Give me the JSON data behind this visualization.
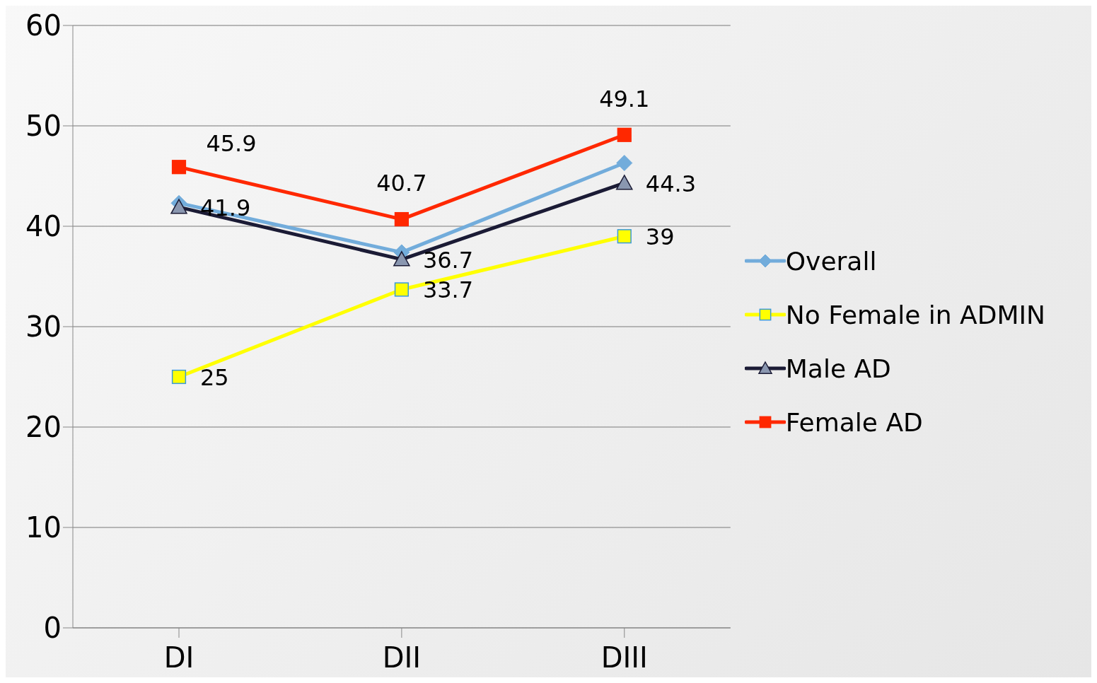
{
  "chart_data": {
    "type": "line",
    "categories": [
      "DI",
      "DII",
      "DIII"
    ],
    "series": [
      {
        "name": "Overall",
        "color": "#72acdb",
        "marker": "diamond",
        "values": [
          42.3,
          37.4,
          46.3
        ]
      },
      {
        "name": "No Female in ADMIN",
        "color": "#ffff00",
        "marker": "square",
        "values": [
          25,
          33.7,
          39
        ],
        "value_labels": [
          "25",
          "33.7",
          "39"
        ]
      },
      {
        "name": "Male AD",
        "color": "#1b1b35",
        "marker": "triangle",
        "values": [
          41.9,
          36.7,
          44.3
        ],
        "value_labels": [
          "41.9",
          "36.7",
          "44.3"
        ]
      },
      {
        "name": "Female AD",
        "color": "#ff2800",
        "marker": "square",
        "values": [
          45.9,
          40.7,
          49.1
        ],
        "value_labels": [
          "45.9",
          "40.7",
          "49.1"
        ]
      }
    ],
    "ylim": [
      0,
      60
    ],
    "yticks": [
      0,
      10,
      20,
      30,
      40,
      50,
      60
    ],
    "grid": "y",
    "legend": "right"
  }
}
